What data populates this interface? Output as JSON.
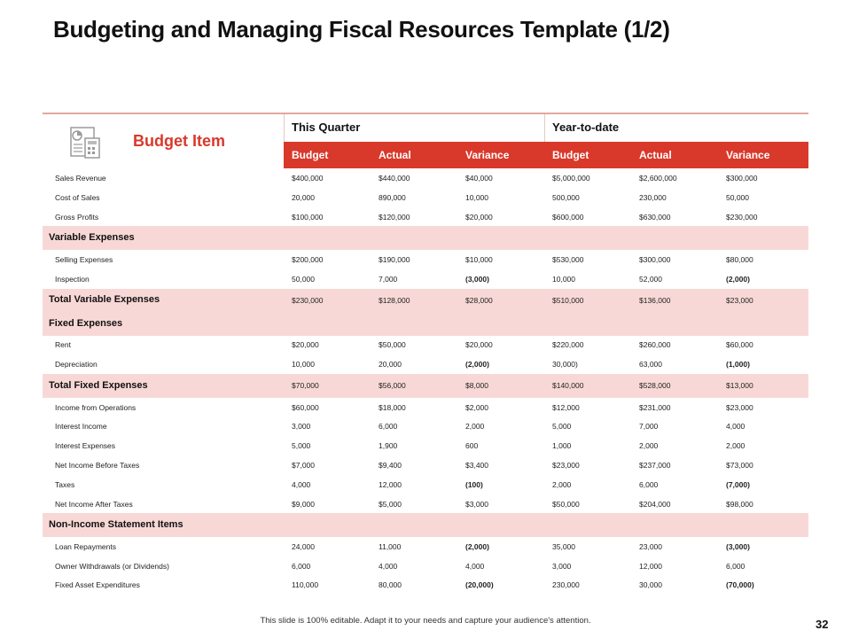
{
  "header": {
    "title": "Budgeting and Managing Fiscal Resources Template (1/2)"
  },
  "table": {
    "corner": "Budget Item",
    "groups": [
      "This Quarter",
      "Year-to-date"
    ],
    "columns": [
      "Budget",
      "Actual",
      "Variance",
      "Budget",
      "Actual",
      "Variance"
    ],
    "rows": [
      {
        "label": "Sales Revenue",
        "style": "item",
        "values": [
          "$400,000",
          "$440,000",
          "$40,000",
          "$5,000,000",
          "$2,600,000",
          "$300,000"
        ]
      },
      {
        "label": "Cost of Sales",
        "style": "item",
        "values": [
          "20,000",
          "890,000",
          "10,000",
          "500,000",
          "230,000",
          "50,000"
        ]
      },
      {
        "label": "Gross Profits",
        "style": "item",
        "values": [
          "$100,000",
          "$120,000",
          "$20,000",
          "$600,000",
          "$630,000",
          "$230,000"
        ]
      },
      {
        "label": "Variable Expenses",
        "style": "section",
        "values": []
      },
      {
        "label": "Selling Expenses",
        "style": "item",
        "values": [
          "$200,000",
          "$190,000",
          "$10,000",
          "$530,000",
          "$300,000",
          "$80,000"
        ]
      },
      {
        "label": "Inspection",
        "style": "item",
        "values": [
          "50,000",
          "7,000",
          "(3,000)",
          "10,000",
          "52,000",
          "(2,000)"
        ]
      },
      {
        "label": "Total Variable Expenses",
        "style": "total",
        "values": [
          "$230,000",
          "$128,000",
          "$28,000",
          "$510,000",
          "$136,000",
          "$23,000"
        ]
      },
      {
        "label": "Fixed Expenses",
        "style": "section",
        "values": []
      },
      {
        "label": "Rent",
        "style": "item",
        "values": [
          "$20,000",
          "$50,000",
          "$20,000",
          "$220,000",
          "$260,000",
          "$60,000"
        ]
      },
      {
        "label": "Depreciation",
        "style": "item",
        "values": [
          "10,000",
          "20,000",
          "(2,000)",
          "30,000)",
          "63,000",
          "(1,000)"
        ]
      },
      {
        "label": "Total Fixed Expenses",
        "style": "total",
        "values": [
          "$70,000",
          "$56,000",
          "$8,000",
          "$140,000",
          "$528,000",
          "$13,000"
        ]
      },
      {
        "label": "Income from Operations",
        "style": "item",
        "values": [
          "$60,000",
          "$18,000",
          "$2,000",
          "$12,000",
          "$231,000",
          "$23,000"
        ]
      },
      {
        "label": "Interest Income",
        "style": "item",
        "values": [
          "3,000",
          "6,000",
          "2,000",
          "5,000",
          "7,000",
          "4,000"
        ]
      },
      {
        "label": "Interest Expenses",
        "style": "item",
        "values": [
          "5,000",
          "1,900",
          "600",
          "1,000",
          "2,000",
          "2,000"
        ]
      },
      {
        "label": "Net Income Before Taxes",
        "style": "item",
        "values": [
          "$7,000",
          "$9,400",
          "$3,400",
          "$23,000",
          "$237,000",
          "$73,000"
        ]
      },
      {
        "label": "Taxes",
        "style": "item",
        "values": [
          "4,000",
          "12,000",
          "(100)",
          "2,000",
          "6,000",
          "(7,000)"
        ]
      },
      {
        "label": "Net Income After Taxes",
        "style": "item",
        "values": [
          "$9,000",
          "$5,000",
          "$3,000",
          "$50,000",
          "$204,000",
          "$98,000"
        ]
      },
      {
        "label": "Non-Income Statement Items",
        "style": "section",
        "values": []
      },
      {
        "label": "Loan Repayments",
        "style": "item",
        "values": [
          "24,000",
          "11,000",
          "(2,000)",
          "35,000",
          "23,000",
          "(3,000)"
        ]
      },
      {
        "label": "Owner Withdrawals (or Dividends)",
        "style": "item",
        "values": [
          "6,000",
          "4,000",
          "4,000",
          "3,000",
          "12,000",
          "6,000"
        ]
      },
      {
        "label": "Fixed Asset Expenditures",
        "style": "item",
        "values": [
          "110,000",
          "80,000",
          "(20,000)",
          "230,000",
          "30,000",
          "(70,000)"
        ]
      }
    ]
  },
  "footer": {
    "note": "This slide is 100% editable. Adapt it to your needs and capture your audience's attention.",
    "page": "32"
  }
}
